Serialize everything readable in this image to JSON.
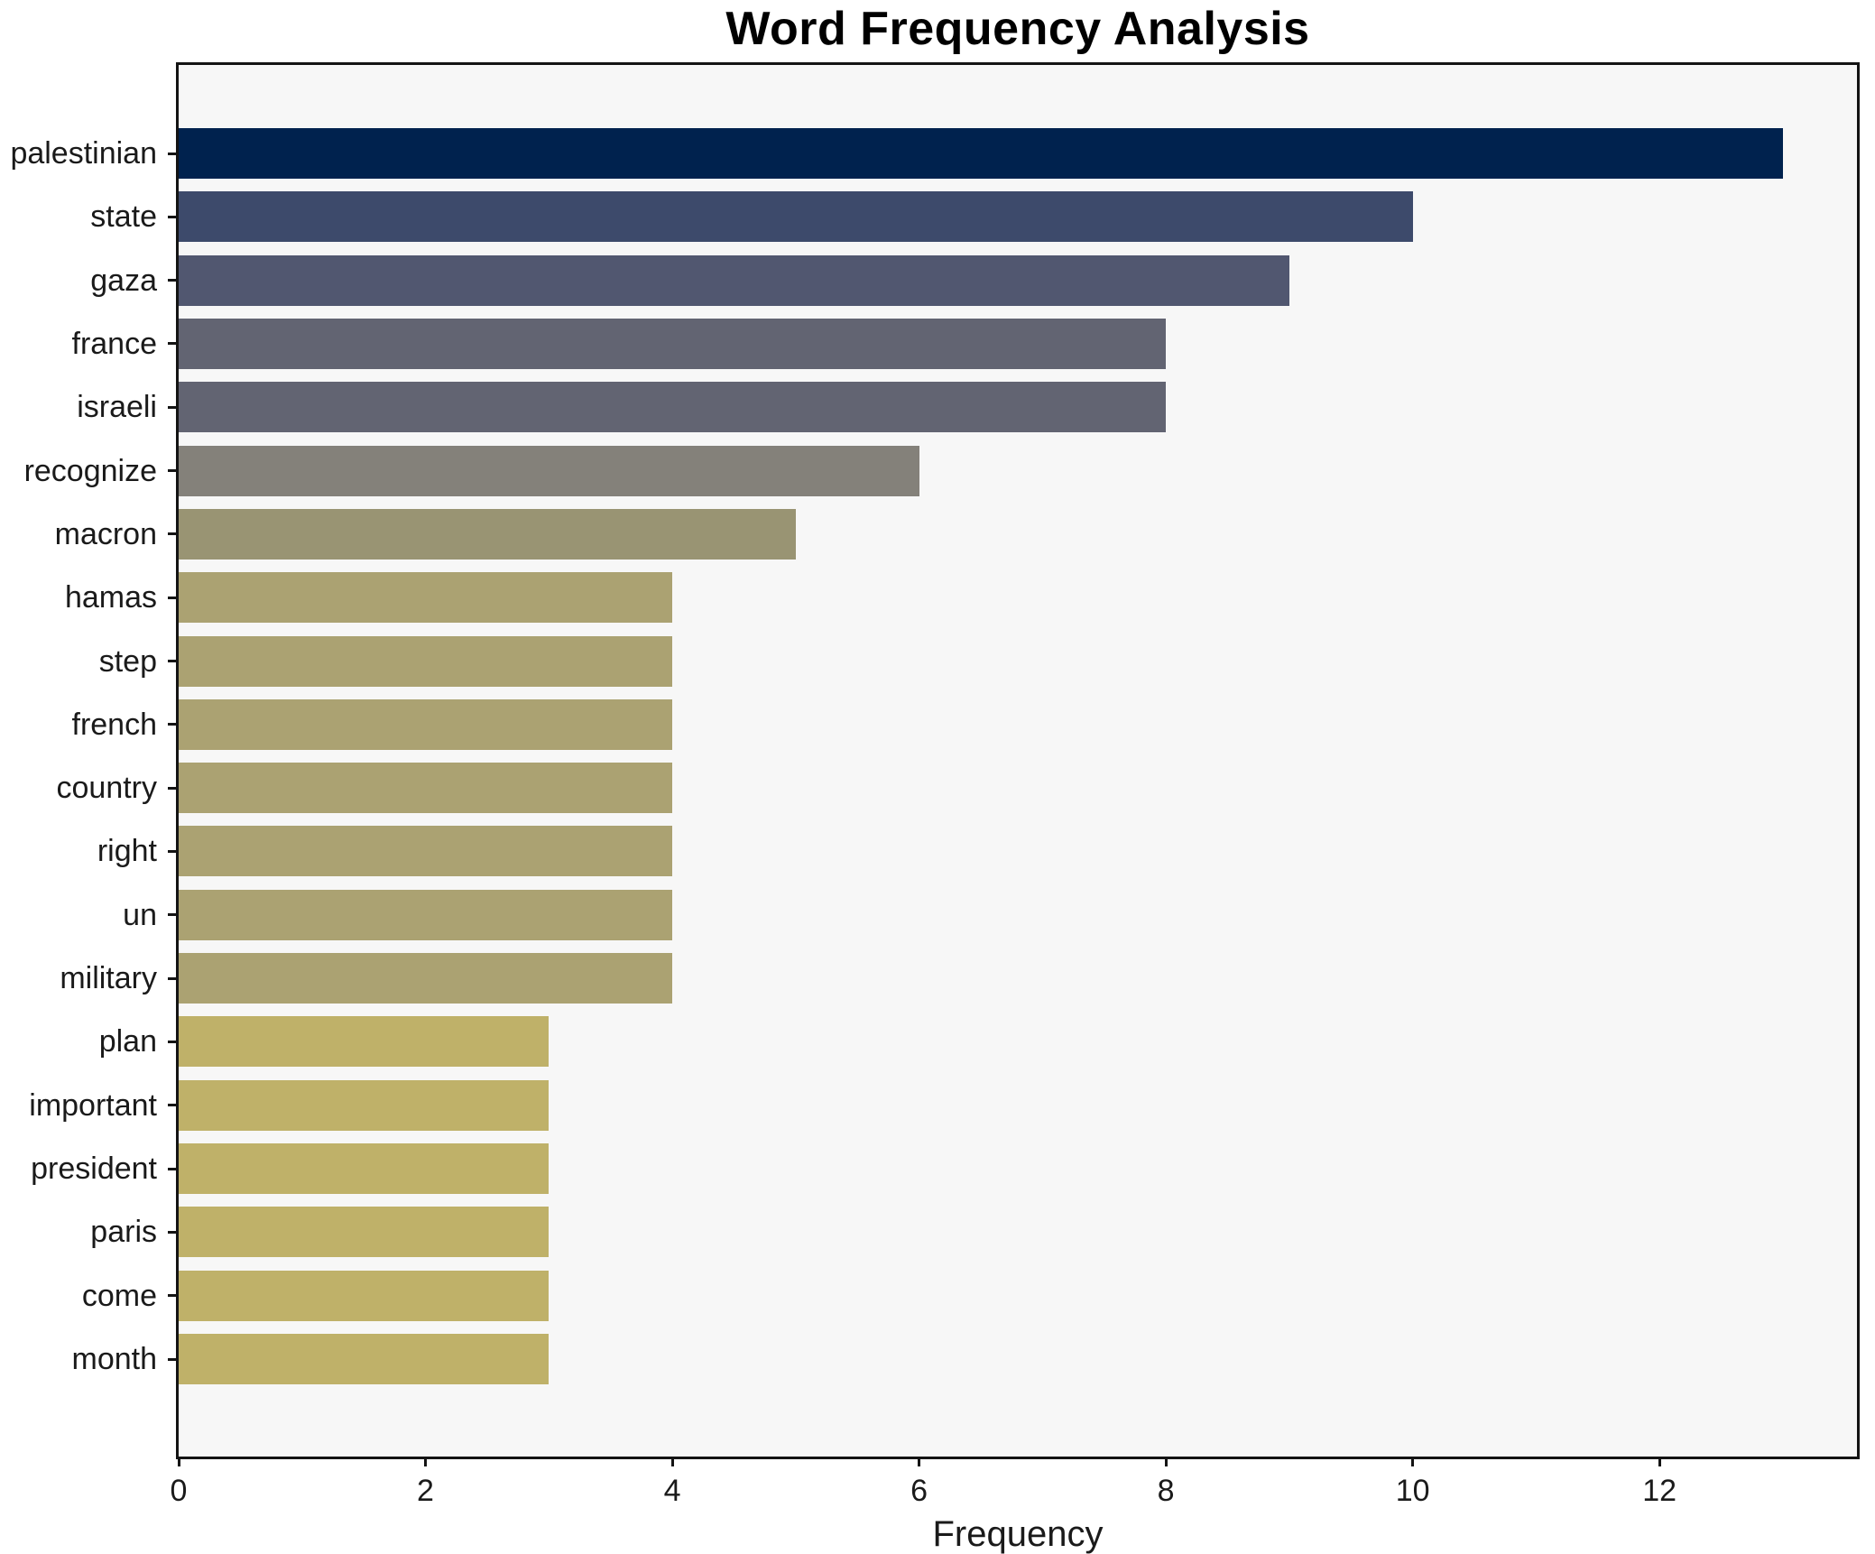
{
  "chart_data": {
    "type": "bar",
    "orientation": "horizontal",
    "title": "Word Frequency Analysis",
    "xlabel": "Frequency",
    "ylabel": "",
    "categories": [
      "palestinian",
      "state",
      "gaza",
      "france",
      "israeli",
      "recognize",
      "macron",
      "hamas",
      "step",
      "french",
      "country",
      "right",
      "un",
      "military",
      "plan",
      "important",
      "president",
      "paris",
      "come",
      "month"
    ],
    "values": [
      13,
      10,
      9,
      8,
      8,
      6,
      5,
      4,
      4,
      4,
      4,
      4,
      4,
      4,
      3,
      3,
      3,
      3,
      3,
      3
    ],
    "bar_colors": [
      "#00224E",
      "#3D4A6B",
      "#515770",
      "#626472",
      "#626472",
      "#84817A",
      "#999473",
      "#ABA272",
      "#ABA272",
      "#ABA272",
      "#ABA272",
      "#ABA272",
      "#ABA272",
      "#ABA272",
      "#BFB169",
      "#BFB169",
      "#BFB169",
      "#BFB169",
      "#BFB169",
      "#BFB169"
    ],
    "xlim": [
      0,
      13.6
    ],
    "xticks": [
      0,
      2,
      4,
      6,
      8,
      10,
      12
    ],
    "grid": false,
    "legend": null,
    "plot_background": "#F7F7F7",
    "figure_background": "#FFFFFF",
    "spine_color": "#141414",
    "text_color": "#1a1a1a"
  }
}
